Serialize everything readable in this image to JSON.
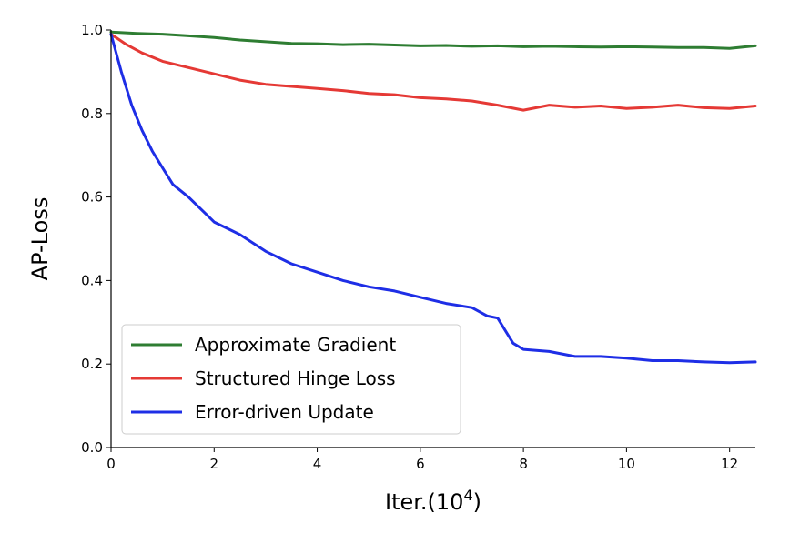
{
  "chart_data": {
    "type": "line",
    "title": "",
    "xlabel": "Iter.(10",
    "xlabel_sup": "4",
    "xlabel_suffix": ")",
    "ylabel": "AP-Loss",
    "xlim": [
      0,
      12.5
    ],
    "ylim": [
      0,
      1.0
    ],
    "xticks": [
      0,
      2,
      4,
      6,
      8,
      10,
      12
    ],
    "yticks": [
      0.0,
      0.2,
      0.4,
      0.6,
      0.8,
      1.0
    ],
    "xtick_labels": [
      "0",
      "2",
      "4",
      "6",
      "8",
      "10",
      "12"
    ],
    "ytick_labels": [
      "0.0",
      "0.2",
      "0.4",
      "0.6",
      "0.8",
      "1.0"
    ],
    "grid": false,
    "legend_position": "lower-left",
    "series": [
      {
        "name": "Approximate Gradient",
        "color": "#2e7d32",
        "x": [
          0,
          0.5,
          1,
          1.5,
          2,
          2.5,
          3,
          3.5,
          4,
          4.5,
          5,
          5.5,
          6,
          6.5,
          7,
          7.5,
          8,
          8.5,
          9,
          9.5,
          10,
          10.5,
          11,
          11.5,
          12,
          12.5
        ],
        "y": [
          0.995,
          0.992,
          0.99,
          0.986,
          0.982,
          0.976,
          0.972,
          0.968,
          0.967,
          0.965,
          0.966,
          0.964,
          0.962,
          0.963,
          0.961,
          0.962,
          0.96,
          0.961,
          0.96,
          0.959,
          0.96,
          0.959,
          0.958,
          0.958,
          0.956,
          0.962
        ]
      },
      {
        "name": "Structured Hinge Loss",
        "color": "#e53935",
        "x": [
          0,
          0.3,
          0.6,
          1,
          1.5,
          2,
          2.5,
          3,
          3.5,
          4,
          4.5,
          5,
          5.5,
          6,
          6.5,
          7,
          7.5,
          8,
          8.5,
          9,
          9.5,
          10,
          10.5,
          11,
          11.5,
          12,
          12.5
        ],
        "y": [
          0.99,
          0.965,
          0.945,
          0.925,
          0.91,
          0.895,
          0.88,
          0.87,
          0.865,
          0.86,
          0.855,
          0.848,
          0.845,
          0.838,
          0.835,
          0.83,
          0.82,
          0.808,
          0.82,
          0.815,
          0.818,
          0.812,
          0.815,
          0.82,
          0.814,
          0.812,
          0.818
        ]
      },
      {
        "name": "Error-driven Update",
        "color": "#1e2ee6",
        "x": [
          0,
          0.2,
          0.4,
          0.6,
          0.8,
          1.0,
          1.2,
          1.5,
          2.0,
          2.5,
          3.0,
          3.5,
          4.0,
          4.5,
          5.0,
          5.5,
          6.0,
          6.5,
          7.0,
          7.3,
          7.5,
          7.7,
          7.8,
          8.0,
          8.5,
          9.0,
          9.5,
          10.0,
          10.5,
          11.0,
          11.5,
          12.0,
          12.5
        ],
        "y": [
          0.99,
          0.9,
          0.82,
          0.76,
          0.71,
          0.67,
          0.63,
          0.6,
          0.54,
          0.51,
          0.47,
          0.44,
          0.42,
          0.4,
          0.385,
          0.375,
          0.36,
          0.345,
          0.335,
          0.315,
          0.31,
          0.27,
          0.25,
          0.235,
          0.23,
          0.218,
          0.218,
          0.214,
          0.208,
          0.208,
          0.205,
          0.203,
          0.205
        ]
      }
    ]
  }
}
